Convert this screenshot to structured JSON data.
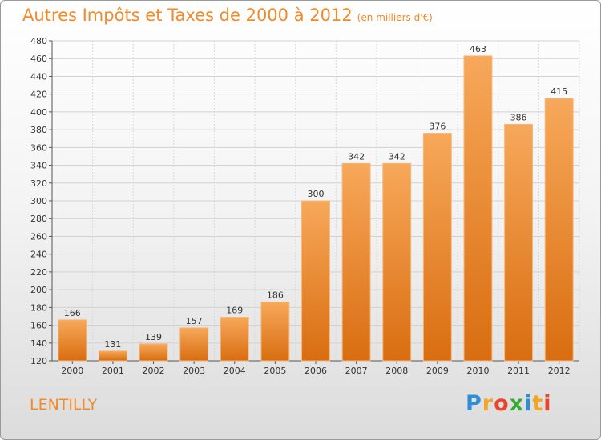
{
  "chart_data": {
    "type": "bar",
    "title": "Autres Impôts et Taxes de 2000 à 2012",
    "subtitle": "(en milliers d'€)",
    "categories": [
      "2000",
      "2001",
      "2002",
      "2003",
      "2004",
      "2005",
      "2006",
      "2007",
      "2008",
      "2009",
      "2010",
      "2011",
      "2012"
    ],
    "values": [
      166,
      131,
      139,
      157,
      169,
      186,
      300,
      342,
      342,
      376,
      463,
      386,
      415
    ],
    "ylim": [
      120,
      480
    ],
    "yticks": [
      120,
      140,
      160,
      180,
      200,
      220,
      240,
      260,
      280,
      300,
      320,
      340,
      360,
      380,
      400,
      420,
      440,
      460,
      480
    ],
    "grid": true,
    "bar_color": "#f08a2a",
    "text_color": "#f08a2a"
  },
  "town": "LENTILLY",
  "logo": {
    "text": "Proxiti",
    "letters": [
      {
        "ch": "P",
        "color": "#2e8fd6"
      },
      {
        "ch": "r",
        "color": "#f4a623"
      },
      {
        "ch": "o",
        "color": "#e8452c"
      },
      {
        "ch": "x",
        "color": "#3aa83a"
      },
      {
        "ch": "i",
        "color": "#2e8fd6"
      },
      {
        "ch": "t",
        "color": "#f4a623"
      },
      {
        "ch": "i",
        "color": "#e8452c"
      }
    ]
  }
}
